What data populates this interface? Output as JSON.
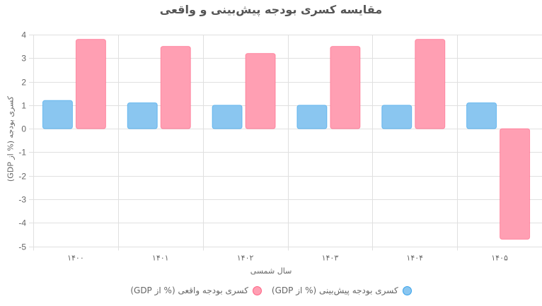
{
  "chart_data": {
    "type": "bar",
    "title": "مقایسه کسری بودجه پیش‌بینی و واقعی",
    "xlabel": "سال شمسی",
    "ylabel": "کسری بودجه (% از GDP)",
    "categories": [
      "۱۴۰۰",
      "۱۴۰۱",
      "۱۴۰۲",
      "۱۴۰۳",
      "۱۴۰۴",
      "۱۴۰۵"
    ],
    "series": [
      {
        "name": "کسری بودجه پیش‌بینی (% از GDP)",
        "values": [
          1.2,
          1.1,
          1.0,
          1.0,
          1.0,
          1.1
        ],
        "fill": "#8AC6F0",
        "border": "#36A2EB"
      },
      {
        "name": "کسری بودجه واقعی (% از GDP)",
        "values": [
          3.8,
          3.5,
          3.2,
          3.5,
          3.8,
          -4.7
        ],
        "fill": "#FF9FB3",
        "border": "#FF6384"
      }
    ],
    "ylim": [
      -5,
      4
    ],
    "yticks": [
      4,
      3,
      2,
      1,
      0,
      -1,
      -2,
      -3,
      -4,
      -5
    ],
    "grid": true,
    "legend_position": "bottom"
  }
}
